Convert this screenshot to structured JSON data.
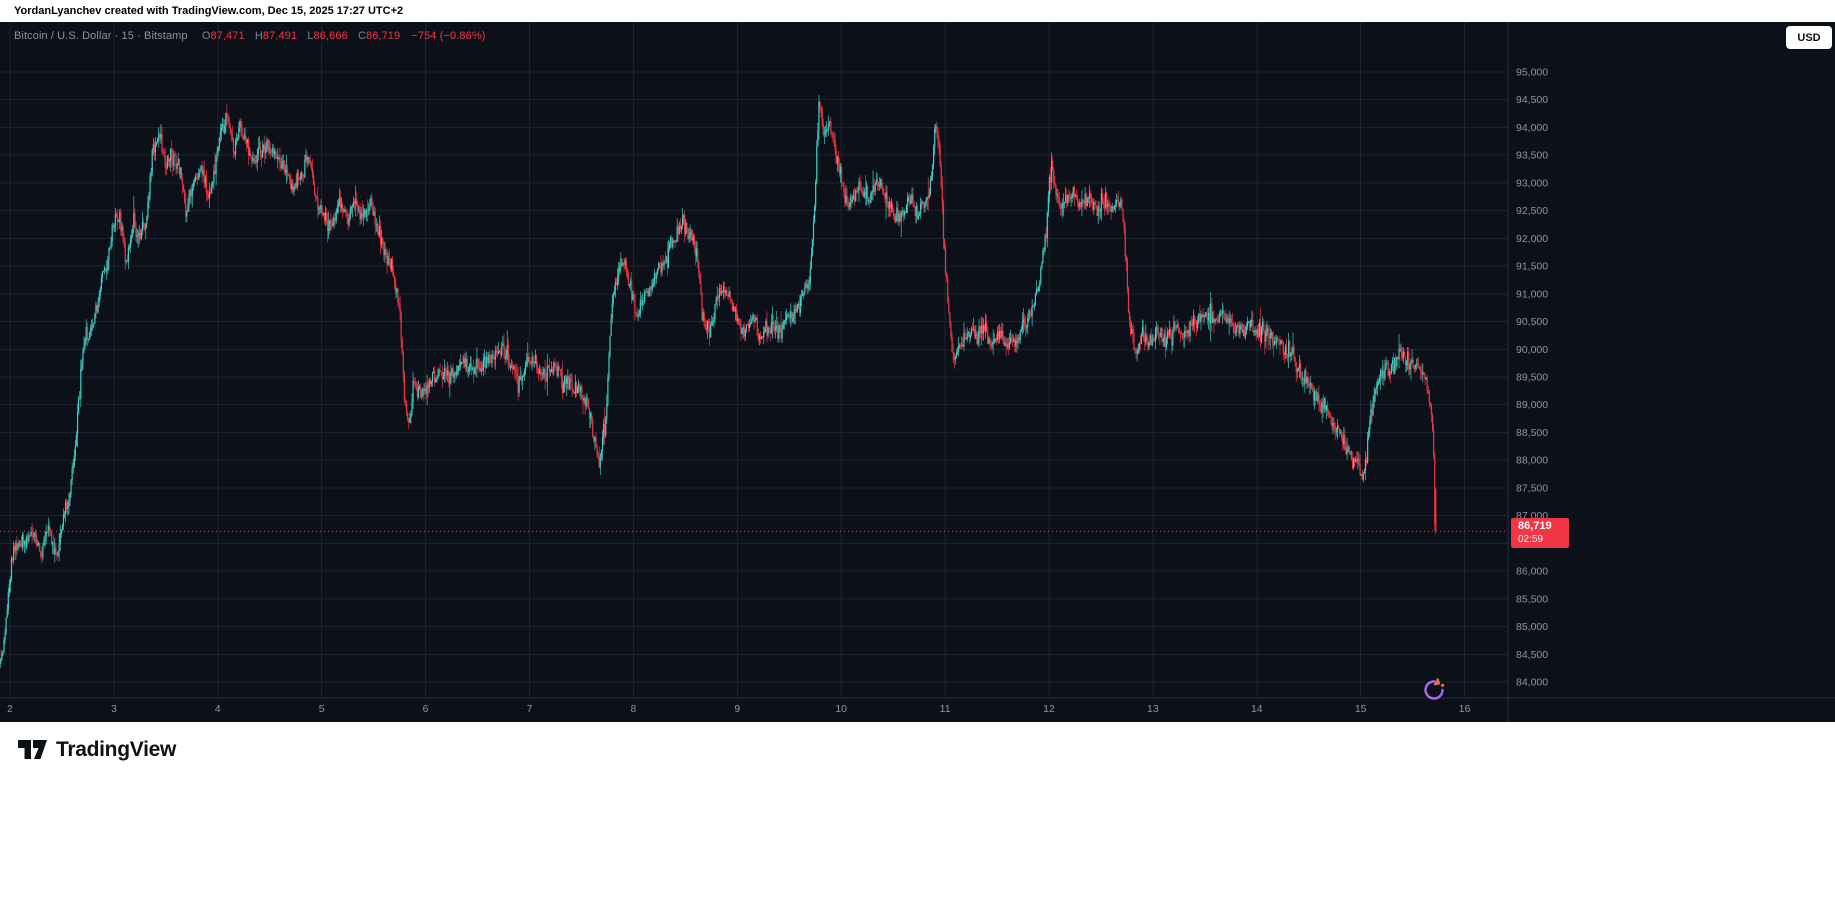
{
  "attribution": "YordanLyanchev created with TradingView.com, Dec 15, 2025 17:27 UTC+2",
  "header": {
    "title": "Bitcoin / U.S. Dollar · 15 · Bitstamp",
    "ohlc": {
      "o_label": "O",
      "o": "87,471",
      "h_label": "H",
      "h": "87,491",
      "l_label": "L",
      "l": "86,666",
      "c_label": "C",
      "c": "86,719",
      "change": "−754 (−0.86%)"
    }
  },
  "currency_button": "USD",
  "price_badge": {
    "price": "86,719",
    "countdown": "02:59"
  },
  "price_axis": {
    "labels": [
      "95,000",
      "94,500",
      "94,000",
      "93,500",
      "93,000",
      "92,500",
      "92,000",
      "91,500",
      "91,000",
      "90,500",
      "90,000",
      "89,500",
      "89,000",
      "88,500",
      "88,000",
      "87,500",
      "87,000",
      "86,500",
      "86,000",
      "85,500",
      "85,000",
      "84,500",
      "84,000"
    ]
  },
  "time_axis": {
    "labels": [
      "2",
      "3",
      "4",
      "5",
      "6",
      "7",
      "8",
      "9",
      "10",
      "11",
      "12",
      "13",
      "14",
      "15",
      "16"
    ]
  },
  "footer": {
    "brand": "TradingView"
  },
  "colors": {
    "bg": "#0c1018",
    "grid": "#1c2230",
    "axis_line": "#262e40",
    "axis_text": "#8e95a6",
    "up": "#41cfc3",
    "down": "#f23645",
    "badge": "#f23645",
    "snapshot_purple": "#a66bf2",
    "snapshot_orange": "#f2703c"
  },
  "chart_data": {
    "type": "candlestick",
    "title": "Bitcoin / U.S. Dollar",
    "interval_minutes": 15,
    "exchange": "Bitstamp",
    "last": {
      "open": 87471,
      "high": 87491,
      "low": 86666,
      "close": 86719,
      "change": -754,
      "change_pct": -0.86
    },
    "y_range": [
      84000,
      95000
    ],
    "y_step": 500,
    "x_range_days": [
      2,
      16
    ],
    "price_path": [
      [
        1.895,
        84600
      ],
      [
        1.93,
        84300
      ],
      [
        1.97,
        85200
      ],
      [
        2.02,
        86200
      ],
      [
        2.08,
        86600
      ],
      [
        2.15,
        86500
      ],
      [
        2.22,
        86800
      ],
      [
        2.3,
        86300
      ],
      [
        2.38,
        86800
      ],
      [
        2.45,
        86200
      ],
      [
        2.52,
        87000
      ],
      [
        2.58,
        87400
      ],
      [
        2.65,
        88600
      ],
      [
        2.72,
        90200
      ],
      [
        2.8,
        90400
      ],
      [
        2.88,
        91200
      ],
      [
        2.95,
        91600
      ],
      [
        3.0,
        92300
      ],
      [
        3.06,
        92400
      ],
      [
        3.12,
        91500
      ],
      [
        3.18,
        92200
      ],
      [
        3.25,
        92000
      ],
      [
        3.32,
        92400
      ],
      [
        3.38,
        93600
      ],
      [
        3.44,
        93900
      ],
      [
        3.5,
        93300
      ],
      [
        3.57,
        93500
      ],
      [
        3.63,
        93300
      ],
      [
        3.7,
        92500
      ],
      [
        3.78,
        93100
      ],
      [
        3.85,
        93300
      ],
      [
        3.92,
        92700
      ],
      [
        3.98,
        93400
      ],
      [
        4.04,
        93900
      ],
      [
        4.1,
        94200
      ],
      [
        4.16,
        93500
      ],
      [
        4.22,
        94100
      ],
      [
        4.28,
        93700
      ],
      [
        4.35,
        93400
      ],
      [
        4.42,
        93600
      ],
      [
        4.5,
        93700
      ],
      [
        4.58,
        93400
      ],
      [
        4.65,
        93200
      ],
      [
        4.72,
        92900
      ],
      [
        4.8,
        93200
      ],
      [
        4.88,
        93400
      ],
      [
        4.95,
        92700
      ],
      [
        5.02,
        92400
      ],
      [
        5.1,
        92200
      ],
      [
        5.18,
        92700
      ],
      [
        5.25,
        92400
      ],
      [
        5.32,
        92600
      ],
      [
        5.4,
        92400
      ],
      [
        5.48,
        92600
      ],
      [
        5.55,
        92100
      ],
      [
        5.62,
        91700
      ],
      [
        5.7,
        91400
      ],
      [
        5.76,
        90600
      ],
      [
        5.8,
        89200
      ],
      [
        5.84,
        88700
      ],
      [
        5.89,
        89400
      ],
      [
        5.95,
        89200
      ],
      [
        6.05,
        89400
      ],
      [
        6.15,
        89600
      ],
      [
        6.25,
        89500
      ],
      [
        6.35,
        89800
      ],
      [
        6.45,
        89600
      ],
      [
        6.55,
        89700
      ],
      [
        6.65,
        89900
      ],
      [
        6.75,
        90000
      ],
      [
        6.82,
        89700
      ],
      [
        6.9,
        89500
      ],
      [
        6.98,
        89700
      ],
      [
        7.06,
        89800
      ],
      [
        7.15,
        89500
      ],
      [
        7.25,
        89700
      ],
      [
        7.35,
        89400
      ],
      [
        7.45,
        89300
      ],
      [
        7.55,
        89100
      ],
      [
        7.62,
        88400
      ],
      [
        7.68,
        87900
      ],
      [
        7.74,
        88800
      ],
      [
        7.8,
        90800
      ],
      [
        7.86,
        91400
      ],
      [
        7.92,
        91600
      ],
      [
        7.98,
        91100
      ],
      [
        8.04,
        90600
      ],
      [
        8.1,
        90900
      ],
      [
        8.18,
        91200
      ],
      [
        8.26,
        91500
      ],
      [
        8.34,
        91800
      ],
      [
        8.42,
        92100
      ],
      [
        8.48,
        92300
      ],
      [
        8.55,
        92100
      ],
      [
        8.62,
        91700
      ],
      [
        8.68,
        90500
      ],
      [
        8.73,
        90300
      ],
      [
        8.8,
        90800
      ],
      [
        8.87,
        91100
      ],
      [
        8.94,
        90900
      ],
      [
        9.0,
        90500
      ],
      [
        9.08,
        90300
      ],
      [
        9.15,
        90600
      ],
      [
        9.22,
        90200
      ],
      [
        9.3,
        90400
      ],
      [
        9.38,
        90300
      ],
      [
        9.46,
        90500
      ],
      [
        9.54,
        90600
      ],
      [
        9.62,
        90900
      ],
      [
        9.7,
        91300
      ],
      [
        9.75,
        92600
      ],
      [
        9.79,
        94500
      ],
      [
        9.84,
        93800
      ],
      [
        9.89,
        94100
      ],
      [
        9.95,
        93500
      ],
      [
        10.0,
        93100
      ],
      [
        10.06,
        92600
      ],
      [
        10.13,
        92800
      ],
      [
        10.2,
        92900
      ],
      [
        10.28,
        92700
      ],
      [
        10.35,
        93000
      ],
      [
        10.42,
        92800
      ],
      [
        10.5,
        92500
      ],
      [
        10.58,
        92300
      ],
      [
        10.65,
        92700
      ],
      [
        10.73,
        92500
      ],
      [
        10.8,
        92600
      ],
      [
        10.87,
        93000
      ],
      [
        10.92,
        94200
      ],
      [
        10.96,
        93300
      ],
      [
        11.0,
        91800
      ],
      [
        11.05,
        90300
      ],
      [
        11.1,
        89800
      ],
      [
        11.17,
        90100
      ],
      [
        11.24,
        90300
      ],
      [
        11.31,
        90200
      ],
      [
        11.38,
        90400
      ],
      [
        11.45,
        90100
      ],
      [
        11.52,
        90300
      ],
      [
        11.6,
        90000
      ],
      [
        11.68,
        90200
      ],
      [
        11.76,
        90400
      ],
      [
        11.84,
        90700
      ],
      [
        11.92,
        91300
      ],
      [
        11.98,
        92200
      ],
      [
        12.03,
        93300
      ],
      [
        12.08,
        92800
      ],
      [
        12.15,
        92600
      ],
      [
        12.22,
        92800
      ],
      [
        12.3,
        92600
      ],
      [
        12.38,
        92700
      ],
      [
        12.46,
        92500
      ],
      [
        12.54,
        92700
      ],
      [
        12.62,
        92600
      ],
      [
        12.7,
        92700
      ],
      [
        12.74,
        91800
      ],
      [
        12.78,
        90400
      ],
      [
        12.84,
        90000
      ],
      [
        12.9,
        90300
      ],
      [
        12.97,
        90100
      ],
      [
        13.05,
        90300
      ],
      [
        13.13,
        90200
      ],
      [
        13.21,
        90400
      ],
      [
        13.3,
        90300
      ],
      [
        13.4,
        90500
      ],
      [
        13.5,
        90600
      ],
      [
        13.6,
        90500
      ],
      [
        13.7,
        90600
      ],
      [
        13.78,
        90400
      ],
      [
        13.86,
        90300
      ],
      [
        13.94,
        90500
      ],
      [
        14.02,
        90300
      ],
      [
        14.1,
        90400
      ],
      [
        14.18,
        90200
      ],
      [
        14.26,
        90100
      ],
      [
        14.34,
        89900
      ],
      [
        14.42,
        89600
      ],
      [
        14.5,
        89400
      ],
      [
        14.58,
        89100
      ],
      [
        14.66,
        88900
      ],
      [
        14.74,
        88600
      ],
      [
        14.82,
        88400
      ],
      [
        14.9,
        88100
      ],
      [
        14.98,
        87900
      ],
      [
        15.04,
        87700
      ],
      [
        15.1,
        88800
      ],
      [
        15.16,
        89300
      ],
      [
        15.24,
        89600
      ],
      [
        15.32,
        89700
      ],
      [
        15.4,
        89900
      ],
      [
        15.48,
        89800
      ],
      [
        15.56,
        89700
      ],
      [
        15.62,
        89600
      ],
      [
        15.68,
        88900
      ],
      [
        15.705,
        88300
      ],
      [
        15.72,
        86719
      ]
    ]
  }
}
